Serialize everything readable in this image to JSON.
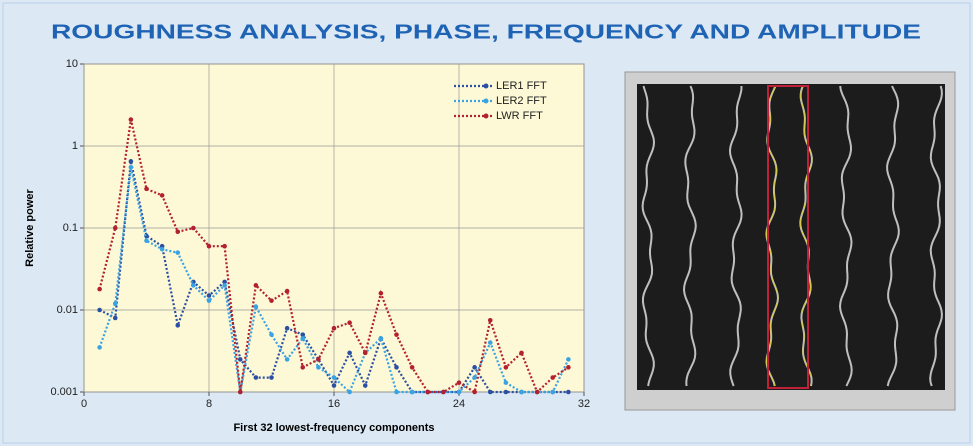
{
  "chart_data": {
    "type": "line",
    "title": "ROUGHNESS ANALYSIS, PHASE, FREQUENCY AND AMPLITUDE",
    "x_label": "First 32 lowest-frequency components",
    "y_label": "Relative power",
    "x": [
      1,
      2,
      3,
      4,
      5,
      6,
      7,
      8,
      9,
      10,
      11,
      12,
      13,
      14,
      15,
      16,
      17,
      18,
      19,
      20,
      21,
      22,
      23,
      24,
      25,
      26,
      27,
      28,
      29,
      30,
      31
    ],
    "series": [
      {
        "name": "LER1 FFT",
        "color": "#2b4fa3",
        "values": [
          0.01,
          0.008,
          0.65,
          0.08,
          0.06,
          0.0065,
          0.022,
          0.015,
          0.022,
          0.0025,
          0.0015,
          0.0015,
          0.006,
          0.005,
          0.0025,
          0.0012,
          0.003,
          0.0012,
          0.0045,
          0.002,
          0.001,
          0.001,
          0.001,
          0.001,
          0.002,
          0.001,
          0.001,
          0.001,
          0.001,
          0.001,
          0.001
        ]
      },
      {
        "name": "LER2 FFT",
        "color": "#3aa3e3",
        "values": [
          0.0035,
          0.012,
          0.55,
          0.07,
          0.055,
          0.05,
          0.02,
          0.013,
          0.02,
          0.001,
          0.011,
          0.005,
          0.0025,
          0.0045,
          0.002,
          0.0015,
          0.001,
          0.003,
          0.0045,
          0.001,
          0.001,
          0.001,
          0.001,
          0.001,
          0.0015,
          0.004,
          0.0013,
          0.001,
          0.001,
          0.001,
          0.0025
        ]
      },
      {
        "name": "LWR FFT",
        "color": "#b3202f",
        "values": [
          0.018,
          0.1,
          2.1,
          0.3,
          0.25,
          0.09,
          0.1,
          0.06,
          0.06,
          0.001,
          0.02,
          0.013,
          0.017,
          0.002,
          0.0025,
          0.006,
          0.007,
          0.003,
          0.016,
          0.005,
          0.002,
          0.001,
          0.001,
          0.0013,
          0.001,
          0.0075,
          0.002,
          0.003,
          0.001,
          0.0015,
          0.002
        ]
      }
    ],
    "xlim": [
      0,
      32
    ],
    "xticks": [
      0,
      8,
      16,
      24,
      32
    ],
    "ylim": [
      0.001,
      10
    ],
    "yticks": [
      0.001,
      0.01,
      0.1,
      1,
      10
    ],
    "log_y": true,
    "grid": true,
    "legend": "upper right"
  }
}
